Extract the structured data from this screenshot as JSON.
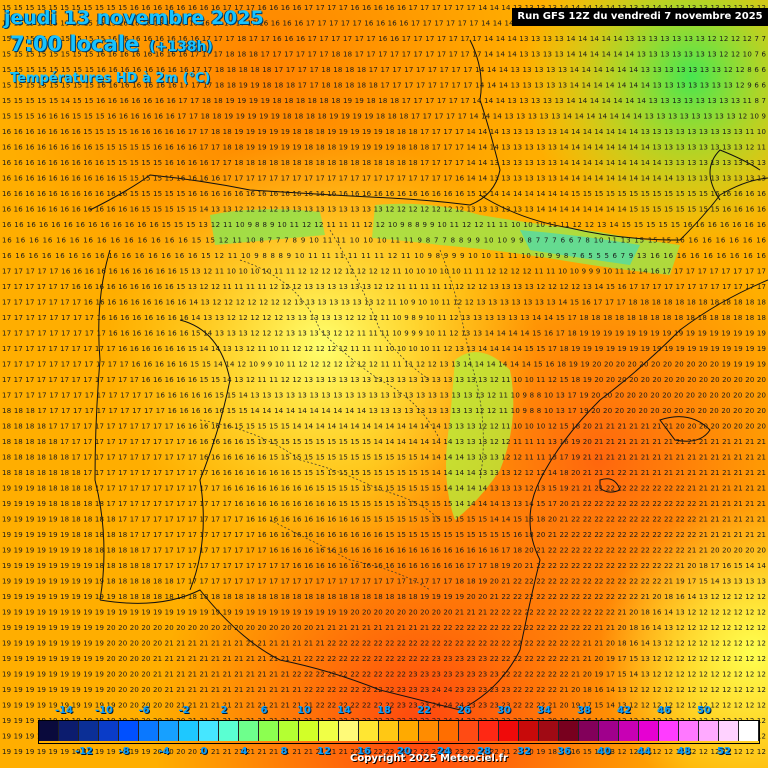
{
  "header": {
    "date_line": "jeudi 13 novembre 2025",
    "time_line": "7:00 locale",
    "lead_time": "(+138h)",
    "parameter": "Températures HD à 2m (°C)",
    "run_info": "Run GFS 12Z du vendredi 7 novembre 2025"
  },
  "footer": {
    "copyright": "Copyright 2025 Meteociel.fr"
  },
  "legend": {
    "top_labels": [
      "-14",
      "-10",
      "-6",
      "-2",
      "2",
      "6",
      "10",
      "14",
      "18",
      "22",
      "26",
      "30",
      "34",
      "38",
      "42",
      "46",
      "50"
    ],
    "bottom_labels": [
      "-12",
      "-8",
      "-4",
      "0",
      "4",
      "8",
      "12",
      "16",
      "20",
      "24",
      "28",
      "32",
      "36",
      "40",
      "44",
      "48",
      "52"
    ],
    "colors": [
      "#0a0a3c",
      "#0c1c6e",
      "#0b2f96",
      "#0a3cc8",
      "#0050ff",
      "#0a78ff",
      "#17a0ff",
      "#1ec8ff",
      "#46e6ff",
      "#5affd2",
      "#6eff8c",
      "#8cff50",
      "#b4ff32",
      "#d2ff28",
      "#f0ff46",
      "#fffa78",
      "#ffe632",
      "#ffc814",
      "#ffaa00",
      "#ff8c00",
      "#ff6e00",
      "#ff4b14",
      "#ff2814",
      "#f00a0a",
      "#c80a0a",
      "#a00a14",
      "#78001e",
      "#82005a",
      "#a0008c",
      "#c800b4",
      "#e600d2",
      "#ff3cff",
      "#ff78ff",
      "#ffaaff",
      "#ffd2ff",
      "#ffffff"
    ]
  },
  "map": {
    "rows": [
      "15 15 15 15 15 15 15 15 15 15 15 16 16 16 16 16 16 16 16 17 17 17 16 16 16 16 17 17 17 17 16 16 16 16 16 17 17 17 17 17 17 14 14 14 13 13 13 13 14 14 14 14 14 13 13 13 14 14 13 13 13 13 12 12 12 12",
      "15 15 15 15 15 15 15 15 15 15 16 16 16 16 16 16 16 16 17 17 17 17 16 16 16 16 17 17 17 17 17 16 16 16 16 17 17 17 17 17 17 14 14 14 13 13 13 13 14 14 14 14 14 13 13 13 13 13 13 12 12 12 12 12 12 7",
      "15 15 15 15 15 15 15 15 15 16 16 16 16 16 16 16 16 17 17 17 18 17 17 16 16 16 17 17 17 17 17 17 16 16 17 17 17 17 17 17 17 14 14 14 13 13 13 13 14 14 14 14 14 13 13 13 13 13 13 13 12 12 12 12 7 7",
      "15 15 15 15 15 15 15 15 16 16 16 16 16 16 16 16 17 17 17 18 18 18 17 17 17 17 17 17 18 18 17 17 17 17 17 17 17 17 17 17 17 14 14 14 13 13 13 13 14 14 14 14 14 14 13 13 13 13 13 13 13 12 12 10 7 6",
      "15 15 15 15 15 15 15 15 16 16 16 16 16 16 16 16 17 17 18 18 18 18 18 17 17 17 17 18 18 18 18 17 17 17 17 17 17 17 17 17 14 14 14 13 13 13 13 13 14 14 14 14 14 14 13 13 13 13 13 13 13 12 12 8 6 6",
      "15 15 15 15 15 15 15 15 16 16 16 16 16 16 16 17 17 17 18 18 19 19 18 18 18 17 17 18 18 18 18 18 17 17 17 17 17 17 17 17 14 14 14 13 13 13 13 13 14 14 14 14 14 14 14 13 13 13 13 13 13 13 12 9 6 6",
      "15 15 15 15 15 14 15 15 16 16 16 16 16 16 16 17 17 18 18 19 19 19 19 18 18 18 18 18 18 19 19 18 18 18 17 17 17 17 17 17 14 14 14 13 13 13 13 13 14 14 14 14 14 14 14 13 13 13 13 13 13 13 13 11 8 7",
      "15 15 15 16 16 16 15 15 15 16 16 16 16 16 16 17 17 18 18 19 19 19 19 19 18 18 18 18 19 19 19 19 18 18 18 17 17 17 17 17 14 14 14 13 13 13 13 13 14 14 14 14 14 14 14 13 13 13 13 13 13 13 13 12 10 9",
      "16 16 16 16 16 16 16 15 15 15 15 16 16 16 16 16 17 17 18 18 19 19 19 19 19 18 18 18 19 19 19 19 19 18 18 18 17 17 17 17 14 14 14 13 13 13 13 13 14 14 14 14 14 14 14 13 13 13 13 13 13 13 13 13 11 10",
      "16 16 16 16 16 16 16 16 15 15 15 15 15 16 16 16 16 17 17 18 18 19 19 19 19 19 18 18 18 19 19 19 19 19 18 18 18 17 17 17 14 14 14 13 13 13 13 13 14 14 14 14 14 14 14 14 13 13 13 13 13 13 13 13 12 11",
      "16 16 16 16 16 16 16 16 16 15 15 15 15 15 16 16 16 16 17 17 18 18 18 18 18 18 18 18 18 18 18 18 18 18 18 18 17 17 17 17 14 14 13 13 13 13 13 13 14 14 14 14 14 14 14 14 14 13 13 13 13 13 13 13 13 13",
      "16 16 16 16 16 16 16 16 16 16 15 15 15 15 15 16 16 16 16 17 17 17 17 17 17 17 17 17 17 17 17 17 17 17 17 17 17 17 17 16 14 14 13 13 13 13 13 13 14 14 14 14 14 14 14 14 14 14 13 13 13 13 13 13 13 13",
      "16 16 16 16 16 16 16 16 16 16 16 15 15 15 15 15 16 16 16 16 16 16 16 16 16 16 16 16 16 16 16 16 16 16 16 16 16 16 16 16 15 15 14 14 14 14 14 14 14 15 15 15 15 15 15 15 15 15 15 15 15 16 16 16 16 16",
      "16 16 16 16 16 16 16 16 16 16 16 16 15 15 15 15 15 14 13 13 12 12 12 12 13 13 13 13 13 13 13 13 13 12 12 12 12 12 12 12 13 13 13 13 13 13 14 14 14 14 14 14 14 14 15 15 15 15 15 15 15 15 16 16 16 16",
      "16 16 16 16 16 16 16 16 16 16 16 16 16 15 15 15 13 12 11 10 9 8 8 9 10 11 12 12 11 11 11 12 12 10 9 8 8 9 9 10 11 12 12 11 11 10 10 10 11 11 12 12 13 14 15 15 15 15 15 16 16 16 16 16 16 16",
      "16 16 16 16 16 16 16 16 16 16 16 16 16 16 15 15 12 11 10 8 7 7 7 8 9 10 11 11 10 10 10 11 11 9 8 7 7 8 8 9 9 10 10 9 9 8 7 7 7 6 6 7 8 10 11 13 15 15 15 16 16 16 16 16 16 16",
      "16 16 16 16 16 16 16 16 16 16 16 16 16 16 16 15 12 11 10 9 8 8 8 9 10 11 11 11 11 11 11 12 11 10 9 8 9 9 9 10 10 11 11 10 10 9 9 8 7 6 5 5 5 6 7 9 13 16 16 16 16 16 16 16 16 16",
      "17 17 17 17 17 16 16 16 16 16 16 16 16 16 16 15 13 12 11 10 10 10 10 11 11 12 12 12 12 12 12 12 12 11 10 10 10 10 10 11 11 12 12 12 12 11 11 10 10 9 9 9 10 11 12 14 16 17 17 17 17 17 17 17 17 17",
      "17 17 17 17 17 17 16 16 16 16 16 16 16 16 16 15 13 12 12 11 11 11 11 12 12 12 13 13 13 13 13 13 12 12 11 11 11 11 11 12 12 12 13 13 13 13 12 12 12 12 13 14 15 16 17 17 17 17 17 17 17 17 17 17 17 17",
      "17 17 17 17 17 17 17 16 16 16 16 16 16 16 16 16 14 13 12 12 12 12 12 12 12 13 13 13 13 13 13 13 12 11 10 9 10 10 11 12 12 13 13 13 13 13 13 13 14 15 16 17 17 17 18 18 18 18 18 18 18 18 18 18 18 18",
      "17 17 17 17 17 17 17 17 16 16 16 16 16 16 16 16 14 13 13 12 12 12 12 12 13 13 13 13 13 12 12 12 11 10 9 8 9 10 11 12 13 13 13 13 13 13 14 14 15 17 18 18 18 18 18 18 18 18 18 18 18 18 18 18 18 18",
      "17 17 17 17 17 17 17 17 17 16 16 16 16 16 16 16 15 14 13 13 13 12 12 12 13 13 13 13 12 12 11 11 11 10 9 9 9 10 11 12 13 13 14 14 14 14 15 16 17 18 19 19 19 19 19 19 19 19 19 19 19 19 19 19 19 19",
      "17 17 17 17 17 17 17 17 17 17 16 16 16 16 16 16 15 14 14 13 13 12 11 10 11 12 12 12 12 12 11 11 11 10 10 10 10 11 12 13 13 14 14 14 14 15 15 17 18 19 19 19 19 19 19 19 19 19 19 19 19 19 19 19 19 19",
      "17 17 17 17 17 17 17 17 17 17 17 16 16 16 16 16 15 15 14 14 12 10 9 9 10 11 12 12 12 12 12 12 12 11 11 11 12 12 13 13 14 14 14 14 14 14 15 16 18 19 19 20 20 20 20 20 20 20 20 20 20 20 19 19 19 19",
      "17 17 17 17 17 17 17 17 17 17 17 17 16 16 16 16 16 15 15 14 13 12 11 11 12 12 13 13 13 13 13 13 13 13 13 13 13 13 13 13 13 13 12 11 10 10 11 12 15 18 19 20 20 20 20 20 20 20 20 20 20 20 20 20 20 20",
      "17 17 17 17 17 17 17 17 17 17 17 17 17 16 16 16 16 16 15 15 14 13 13 13 13 13 13 13 13 13 13 13 13 13 13 13 13 13 13 13 13 12 11 10 9 8 8 10 13 17 19 20 20 20 20 20 20 20 20 20 20 20 20 20 20 20",
      "18 18 18 17 17 17 17 17 17 17 17 17 17 17 16 16 16 16 16 15 15 14 14 14 14 14 14 14 14 14 14 13 13 13 13 13 13 13 13 13 12 12 11 10 9 8 8 10 13 17 19 20 20 20 20 20 20 20 20 20 20 20 20 20 20 20",
      "18 18 18 18 17 17 17 17 17 17 17 17 17 17 17 16 16 16 16 16 15 15 15 15 15 14 14 14 14 14 14 14 14 14 14 14 14 14 13 13 13 12 12 11 10 10 10 12 15 18 20 21 21 21 21 21 21 21 20 20 20 20 20 20 20 20",
      "18 18 18 18 18 17 17 17 17 17 17 17 17 17 17 17 16 16 16 16 16 15 15 15 15 15 15 15 15 15 15 15 14 14 14 14 14 14 14 13 13 13 12 12 11 11 11 13 16 19 20 21 21 21 21 21 21 21 21 21 21 21 21 21 21 21",
      "18 18 18 18 18 18 17 17 17 17 17 17 17 17 17 17 17 16 16 16 16 16 16 15 15 15 15 15 15 15 15 15 15 15 15 15 14 14 14 14 13 13 13 12 12 11 11 13 17 19 21 21 21 21 21 21 21 21 21 21 21 21 21 21 21 21",
      "18 18 18 18 18 18 18 17 17 17 17 17 17 17 17 17 17 17 16 16 16 16 16 16 16 15 15 15 15 15 15 15 15 15 15 15 15 14 14 14 14 13 13 13 12 12 12 14 18 20 21 21 21 22 21 21 21 21 21 21 21 21 21 21 21 21",
      "19 19 19 18 18 18 18 18 17 17 17 17 17 17 17 17 17 17 17 16 16 16 16 16 16 16 16 15 15 15 15 15 15 15 15 15 15 15 14 14 14 14 13 13 13 12 13 15 19 21 21 21 22 22 22 22 22 22 22 21 21 21 21 21 21 21",
      "19 19 19 19 18 18 18 18 18 17 17 17 17 17 17 17 17 17 17 17 16 16 16 16 16 16 16 16 16 15 15 15 15 15 15 15 15 15 15 14 14 14 14 13 13 14 15 17 20 21 22 22 22 22 22 22 22 22 22 22 21 21 21 21 21 21",
      "19 19 19 19 19 18 18 18 18 18 17 17 17 17 17 17 17 17 17 17 17 16 16 16 16 16 16 16 16 16 16 15 15 15 15 15 15 15 15 15 15 15 14 14 15 16 18 20 21 22 22 22 22 22 22 22 22 22 22 22 21 21 21 21 21 21",
      "19 19 19 19 19 19 18 18 18 18 18 17 17 17 17 17 17 17 17 17 17 17 16 16 16 16 16 16 16 16 16 16 16 15 15 15 15 15 15 15 15 15 15 15 16 18 20 21 22 22 22 22 22 22 22 22 22 22 22 22 21 21 21 21 21 21",
      "19 19 19 19 19 19 19 18 18 18 18 18 17 17 17 17 17 17 17 17 17 17 17 16 16 16 16 16 16 16 16 16 16 16 16 16 16 16 16 16 16 16 16 17 18 20 21 22 22 22 22 22 22 22 22 22 22 22 22 21 21 20 20 20 20 20",
      "19 19 19 19 19 19 19 19 18 18 18 18 18 17 17 17 17 17 17 17 17 17 17 17 17 16 16 16 16 16 16 16 16 16 16 16 16 16 16 16 17 17 18 19 20 21 22 22 22 22 22 22 22 22 22 22 22 22 21 20 18 17 16 15 14 14",
      "19 19 19 19 19 19 19 19 19 18 18 18 18 18 18 17 17 17 17 17 17 17 17 17 17 17 17 17 17 17 17 17 17 17 17 17 17 17 17 18 18 19 20 21 22 22 22 22 22 22 22 22 22 22 22 22 22 21 19 17 15 14 13 13 13 13",
      "19 19 19 19 19 19 19 19 19 19 18 18 18 18 18 18 18 18 18 18 18 18 18 18 18 18 18 18 18 18 18 18 18 18 18 18 19 19 19 19 20 20 21 22 22 22 22 22 22 22 22 22 22 22 22 21 20 18 16 14 13 12 12 12 12 12",
      "19 19 19 19 19 19 19 19 19 19 19 19 19 19 19 19 19 19 19 19 19 19 19 19 19 19 19 19 19 19 20 20 20 20 20 20 20 20 20 21 21 21 22 22 22 22 22 22 22 22 22 22 22 21 20 18 16 14 13 12 12 12 12 12 12 12",
      "19 19 19 19 19 19 19 19 19 20 20 20 20 20 20 20 20 20 20 20 20 20 20 20 20 20 20 21 21 21 21 21 21 21 21 21 21 22 22 22 22 22 22 22 22 22 22 22 22 22 22 21 21 20 18 16 14 13 12 12 12 12 12 12 12 12",
      "19 19 19 19 19 19 19 19 19 20 20 20 20 20 21 21 21 21 21 21 21 21 21 21 21 21 21 21 22 22 22 22 22 22 22 22 22 22 22 22 22 22 22 22 22 22 22 22 22 22 21 21 20 18 16 14 13 12 12 12 12 12 12 12 12 12",
      "19 19 19 19 19 19 19 19 19 20 20 20 20 21 21 21 21 21 21 21 21 21 21 21 21 21 22 22 22 22 22 22 22 22 22 22 22 23 23 23 23 23 22 22 22 22 22 22 22 21 21 20 19 17 15 13 12 12 12 12 12 12 12 12 12 12",
      "19 19 19 19 19 19 19 19 19 20 20 20 20 21 21 21 21 21 21 21 21 21 21 21 21 22 22 22 22 22 22 22 22 22 22 23 23 23 23 23 23 23 23 22 22 22 22 22 22 21 20 19 17 15 14 13 12 12 12 12 12 12 12 12 12 12",
      "19 19 19 19 19 19 19 19 19 20 20 20 20 20 21 21 21 21 21 21 21 21 21 21 21 21 22 22 22 22 22 22 22 22 23 23 23 24 24 23 23 23 23 23 22 22 22 22 21 20 18 16 14 13 12 12 12 12 12 12 12 12 12 12 12 12",
      "19 19 19 19 19 19 19 19 19 19 20 20 20 20 20 21 21 21 21 21 21 21 21 21 21 21 21 22 22 22 22 22 22 22 23 23 23 24 24 24 23 23 23 23 22 22 22 21 20 19 17 15 14 13 12 12 12 12 12 12 12 12 12 12 12 12",
      "19 19 19 19 19 19 19 19 19 19 19 20 20 20 20 20 21 21 21 21 21 21 21 21 21 21 21 21 22 22 22 22 22 22 22 23 23 23 24 24 23 23 23 22 22 22 21 20 19 18 16 14 13 12 12 12 12 12 12 12 12 12 12 12 12 12",
      "19 19 19 19 19 19 19 19 19 19 19 19 20 20 20 20 20 21 21 21 21 21 21 21 21 21 21 21 21 22 22 22 22 22 22 22 23 23 23 23 23 23 22 22 21 21 20 19 18 17 15 14 13 12 12 12 12 12 12 12 12 12 12 12 12 12",
      "19 19 19 19 19 19 19 19 19 19 19 19 19 20 20 20 20 20 21 21 21 21 21 21 21 21 21 21 21 21 22 22 22 22 22 22 22 23 23 23 22 22 22 21 21 20 19 18 17 16 15 14 13 12 12 12 12 12 12 12 12 12 12 12 12 12",
      "19 19 19 19 19 19 19 19 19 19 19 19 19 19 20 20 20 20 20 21 21 21 21 21 21 21 21 21 21 21 21 22 22 22 22 22 22 22 22 22 22 21 21 20 20 19 18 17 16 15 14 13 13 12 12 12 12 12 12 12 12 12 12 12 12 12"
    ]
  }
}
